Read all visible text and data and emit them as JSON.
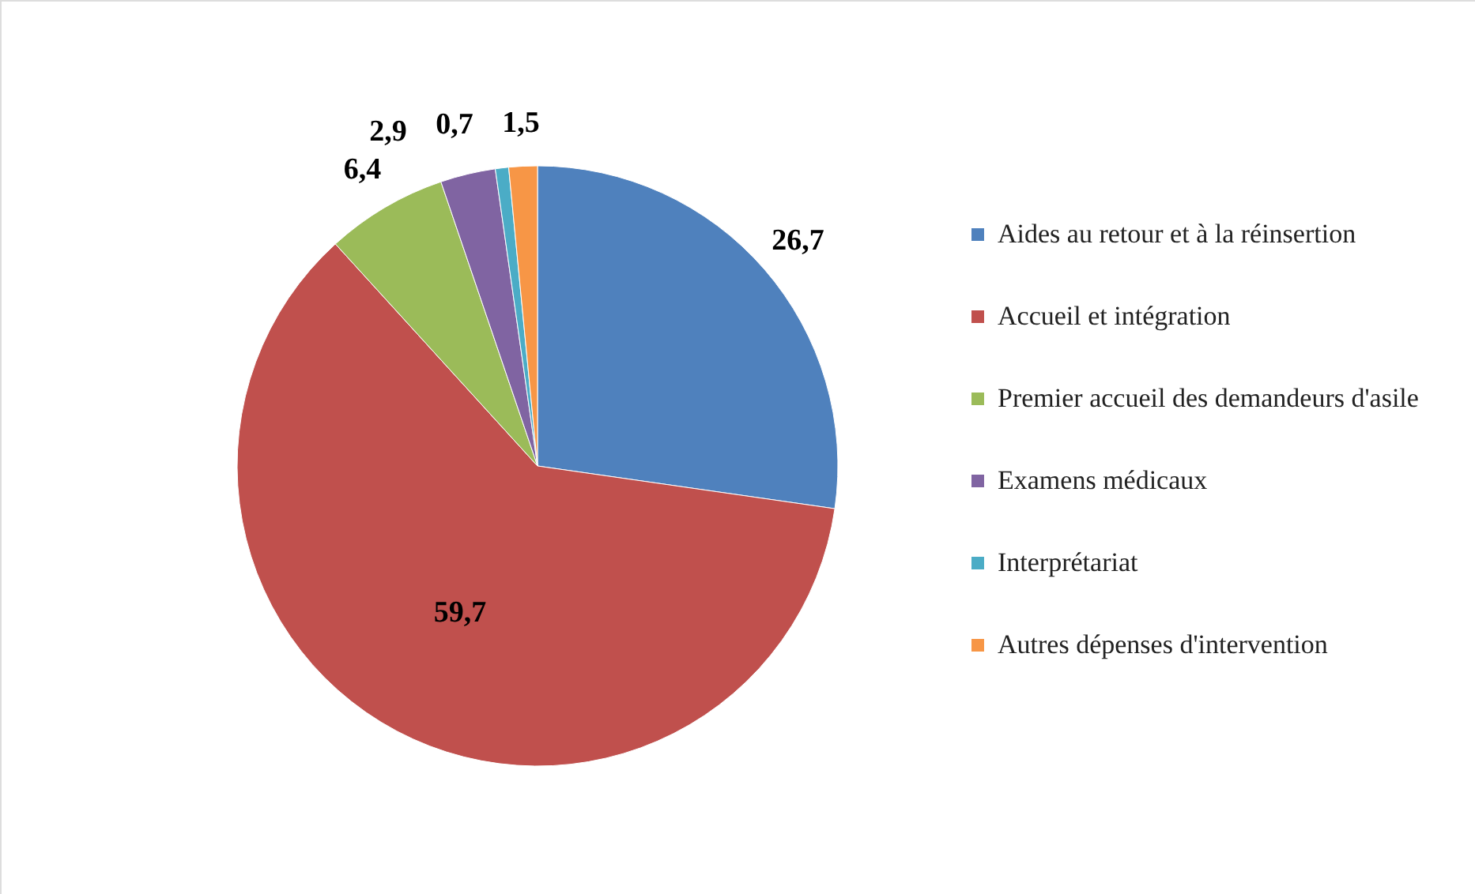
{
  "chart_data": {
    "type": "pie",
    "categories": [
      "Aides au retour et à la réinsertion",
      "Accueil et intégration",
      "Premier accueil des demandeurs d'asile",
      "Examens médicaux",
      "Interprétariat",
      "Autres dépenses d'intervention"
    ],
    "values": [
      26.7,
      59.7,
      6.4,
      2.9,
      0.7,
      1.5
    ],
    "value_labels": [
      "26,7",
      "59,7",
      "6,4",
      "2,9",
      "0,7",
      "1,5"
    ],
    "colors": [
      "#4f81bd",
      "#c0504d",
      "#9bbb59",
      "#8064a2",
      "#4bacc6",
      "#f79646"
    ],
    "legend": "right"
  }
}
